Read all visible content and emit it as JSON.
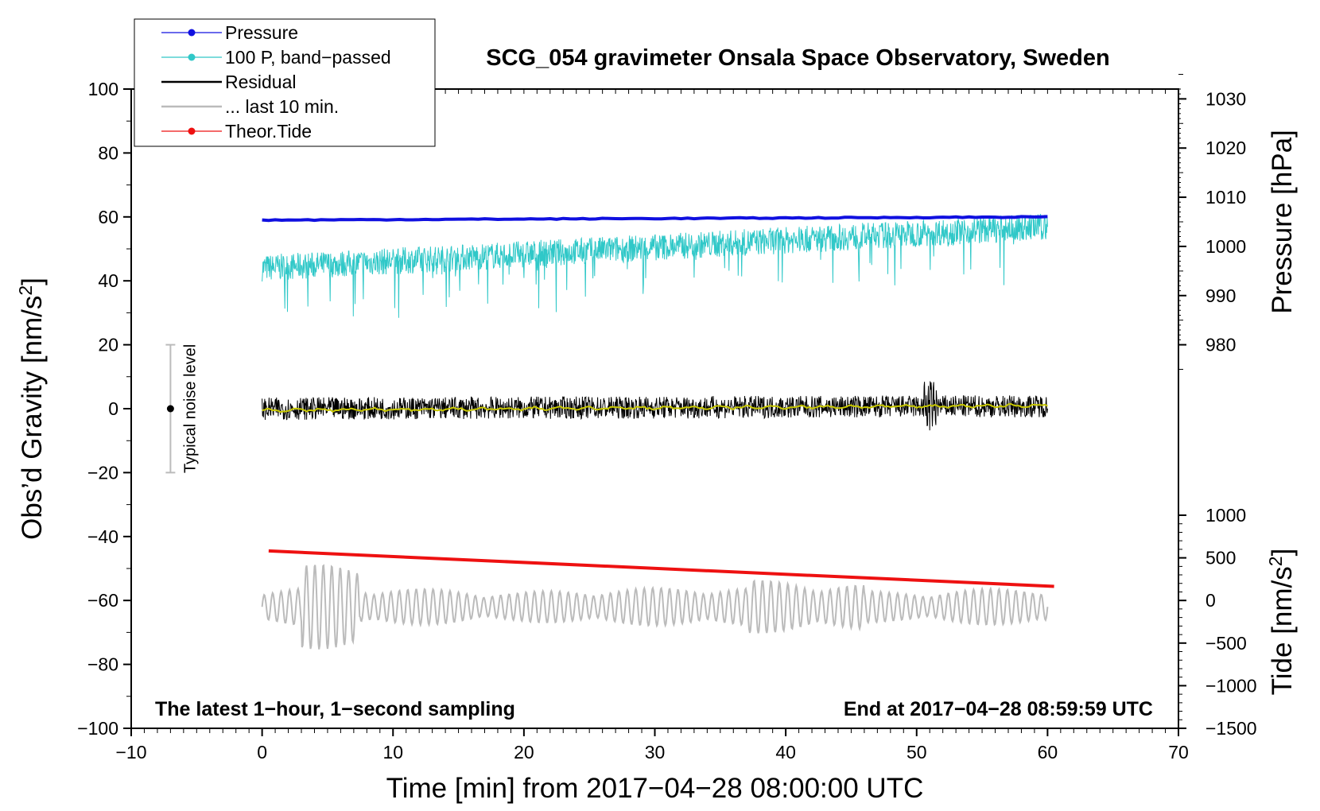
{
  "chart_data": {
    "type": "line",
    "title": "SCG_054 gravimeter Onsala Space Observatory, Sweden",
    "xlabel": "Time [min] from 2017−04−28 08:00:00 UTC",
    "ylabel_left": "Obs’d Gravity [nm/s²]",
    "ylabel_pressure": "Pressure [hPa]",
    "ylabel_tide": "Tide [nm/s²]",
    "xlim": [
      -10,
      70
    ],
    "ylim": [
      -100,
      100
    ],
    "x_ticks": [
      "−10",
      "0",
      "10",
      "20",
      "30",
      "40",
      "50",
      "60",
      "70"
    ],
    "y_ticks": [
      "−100",
      "−80",
      "−60",
      "−40",
      "−20",
      "0",
      "20",
      "40",
      "60",
      "80",
      "100"
    ],
    "pressure_axis": {
      "ticks": [
        "980",
        "990",
        "1000",
        "1010",
        "1020",
        "1030"
      ],
      "values": [
        980,
        990,
        1000,
        1010,
        1020,
        1030
      ],
      "map_y_at_980": 20,
      "hpa_per_unit": 0.65
    },
    "tide_axis": {
      "ticks": [
        "−1500",
        "−1000",
        "−500",
        "0",
        "500",
        "1000"
      ],
      "values": [
        -1500,
        -1000,
        -500,
        0,
        500,
        1000
      ],
      "map_y_at_minus1500": -100,
      "nms2_per_unit": 37.5
    },
    "legend": {
      "placement": "top-left",
      "entries": [
        {
          "label": "Pressure",
          "color": "#1010e0",
          "marker": true
        },
        {
          "label": "100 P, band−passed",
          "color": "#30c8c8",
          "marker": true
        },
        {
          "label": "Residual",
          "color": "#000000",
          "marker": false
        },
        {
          "label": "... last 10 min.",
          "color": "#bbbbbb",
          "marker": false
        },
        {
          "label": "Theor.Tide",
          "color": "#ee1111",
          "marker": true
        }
      ]
    },
    "series": [
      {
        "name": "Pressure",
        "color": "#1010e0",
        "x": [
          0,
          60
        ],
        "y": [
          59,
          60
        ]
      },
      {
        "name": "100 P, band−passed",
        "color": "#30c8c8",
        "x": [
          0,
          60
        ],
        "y": [
          44,
          57
        ],
        "noise_amplitude": 7
      },
      {
        "name": "Residual",
        "color": "#000000",
        "x": [
          0,
          60
        ],
        "y": [
          0,
          0.8
        ],
        "noise_amplitude": 3.5
      },
      {
        "name": "Residual smoothed",
        "color": "#c8c800",
        "x": [
          0,
          60
        ],
        "y": [
          -0.5,
          1
        ]
      },
      {
        "name": "... last 10 min.",
        "color": "#bbbbbb",
        "x": [
          0,
          60
        ],
        "y": [
          -62,
          -62
        ],
        "noise_amplitude": 5
      },
      {
        "name": "Theor.Tide",
        "color": "#ee1111",
        "x": [
          0.5,
          60.5
        ],
        "y": [
          -44.5,
          -55.6
        ]
      }
    ],
    "noise_bar": {
      "label": "Typical noise level",
      "x": -7,
      "y": 0,
      "ymin": -20,
      "ymax": 20
    },
    "annotations": {
      "left": "The latest 1−hour, 1−second sampling",
      "right": "End at 2017−04−28 08:59:59 UTC"
    }
  }
}
